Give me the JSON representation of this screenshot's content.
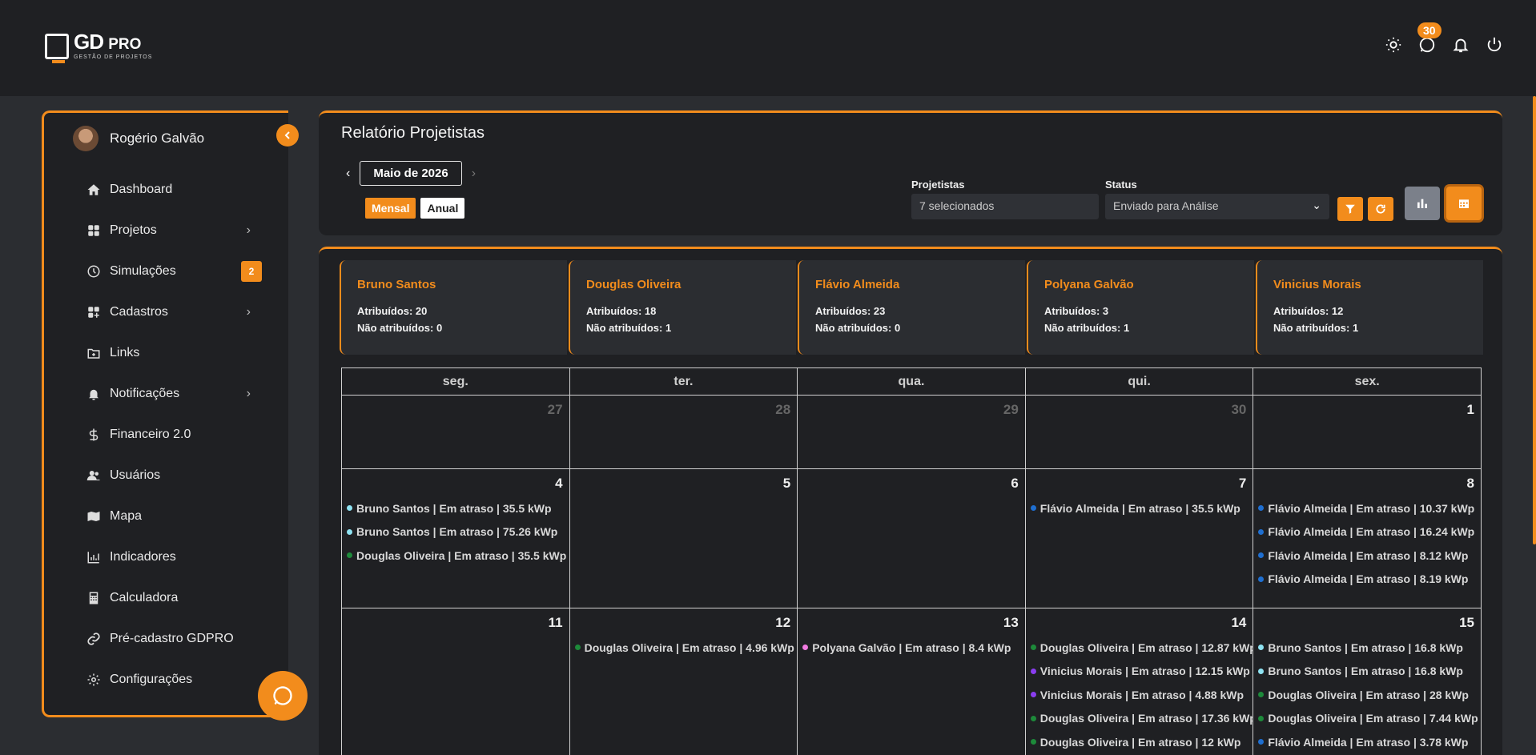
{
  "brand": {
    "name": "GD",
    "name_suffix": "PRO",
    "tagline": "GESTÃO DE PROJETOS"
  },
  "header": {
    "messages_count": "30",
    "icons": [
      "sun-icon",
      "chat-icon",
      "bell-icon",
      "power-icon"
    ]
  },
  "sidebar": {
    "user_name": "Rogério Galvão",
    "items": [
      {
        "label": "Dashboard",
        "icon": "home-icon"
      },
      {
        "label": "Projetos",
        "icon": "grid-icon",
        "has_children": true
      },
      {
        "label": "Simulações",
        "icon": "clock-icon",
        "badge": "2"
      },
      {
        "label": "Cadastros",
        "icon": "grid-plus-icon",
        "has_children": true
      },
      {
        "label": "Links",
        "icon": "folder-link-icon"
      },
      {
        "label": "Notificações",
        "icon": "bell-icon",
        "has_children": true
      },
      {
        "label": "Financeiro 2.0",
        "icon": "dollar-icon"
      },
      {
        "label": "Usuários",
        "icon": "users-icon"
      },
      {
        "label": "Mapa",
        "icon": "map-icon"
      },
      {
        "label": "Indicadores",
        "icon": "bar-chart-icon"
      },
      {
        "label": "Calculadora",
        "icon": "calculator-icon"
      },
      {
        "label": "Pré-cadastro GDPRO",
        "icon": "link-icon"
      },
      {
        "label": "Configurações",
        "icon": "gear-icon"
      }
    ]
  },
  "report": {
    "title": "Relatório Projetistas",
    "month": "Maio de 2026",
    "mode_monthly": "Mensal",
    "mode_yearly": "Anual",
    "filter_designers_label": "Projetistas",
    "filter_designers_value": "7 selecionados",
    "filter_status_label": "Status",
    "filter_status_value": "Enviado para Análise"
  },
  "colors": {
    "accent": "#f28c1c",
    "bruno": "#8fe3f2",
    "douglas": "#1d8a3a",
    "flavio": "#1f6fd1",
    "polyana": "#f07ae0",
    "vinicius": "#8a3df0"
  },
  "cards": [
    {
      "name": "Bruno Santos",
      "assigned": "Atribuídos: 20",
      "unassigned": "Não atribuídos: 0"
    },
    {
      "name": "Douglas Oliveira",
      "assigned": "Atribuídos: 18",
      "unassigned": "Não atribuídos: 1"
    },
    {
      "name": "Flávio Almeida",
      "assigned": "Atribuídos: 23",
      "unassigned": "Não atribuídos: 0"
    },
    {
      "name": "Polyana Galvão",
      "assigned": "Atribuídos: 3",
      "unassigned": "Não atribuídos: 1"
    },
    {
      "name": "Vinicius Morais",
      "assigned": "Atribuídos: 12",
      "unassigned": "Não atribuídos: 1"
    }
  ],
  "calendar": {
    "weekdays": [
      "seg.",
      "ter.",
      "qua.",
      "qui.",
      "sex."
    ],
    "weeks": [
      [
        {
          "day": "27",
          "muted": true,
          "events": []
        },
        {
          "day": "28",
          "muted": true,
          "events": []
        },
        {
          "day": "29",
          "muted": true,
          "events": []
        },
        {
          "day": "30",
          "muted": true,
          "events": []
        },
        {
          "day": "1",
          "events": []
        }
      ],
      [
        {
          "day": "4",
          "events": [
            {
              "text": "Bruno Santos | Em atraso | 35.5 kWp",
              "who": "bruno"
            },
            {
              "text": "Bruno Santos | Em atraso | 75.26 kWp",
              "who": "bruno"
            },
            {
              "text": "Douglas Oliveira | Em atraso | 35.5 kWp",
              "who": "douglas"
            }
          ]
        },
        {
          "day": "5",
          "events": []
        },
        {
          "day": "6",
          "events": []
        },
        {
          "day": "7",
          "events": [
            {
              "text": "Flávio Almeida | Em atraso | 35.5 kWp",
              "who": "flavio"
            }
          ]
        },
        {
          "day": "8",
          "events": [
            {
              "text": "Flávio Almeida | Em atraso | 10.37 kWp",
              "who": "flavio"
            },
            {
              "text": "Flávio Almeida | Em atraso | 16.24 kWp",
              "who": "flavio"
            },
            {
              "text": "Flávio Almeida | Em atraso | 8.12 kWp",
              "who": "flavio"
            },
            {
              "text": "Flávio Almeida | Em atraso | 8.19 kWp",
              "who": "flavio"
            }
          ]
        }
      ],
      [
        {
          "day": "11",
          "events": []
        },
        {
          "day": "12",
          "events": [
            {
              "text": "Douglas Oliveira | Em atraso | 4.96 kWp",
              "who": "douglas"
            }
          ]
        },
        {
          "day": "13",
          "events": [
            {
              "text": "Polyana Galvão | Em atraso | 8.4 kWp",
              "who": "polyana"
            }
          ]
        },
        {
          "day": "14",
          "events": [
            {
              "text": "Douglas Oliveira | Em atraso | 12.87 kWp",
              "who": "douglas"
            },
            {
              "text": "Vinicius Morais | Em atraso | 12.15 kWp",
              "who": "vinicius"
            },
            {
              "text": "Vinicius Morais | Em atraso | 4.88 kWp",
              "who": "vinicius"
            },
            {
              "text": "Douglas Oliveira | Em atraso | 17.36 kWp",
              "who": "douglas"
            },
            {
              "text": "Douglas Oliveira | Em atraso | 12 kWp",
              "who": "douglas"
            }
          ]
        },
        {
          "day": "15",
          "events": [
            {
              "text": "Bruno Santos | Em atraso | 16.8 kWp",
              "who": "bruno"
            },
            {
              "text": "Bruno Santos | Em atraso | 16.8 kWp",
              "who": "bruno"
            },
            {
              "text": "Douglas Oliveira | Em atraso | 28 kWp",
              "who": "douglas"
            },
            {
              "text": "Douglas Oliveira | Em atraso | 7.44 kWp",
              "who": "douglas"
            },
            {
              "text": "Flávio Almeida | Em atraso | 3.78 kWp",
              "who": "flavio"
            }
          ]
        }
      ]
    ]
  }
}
